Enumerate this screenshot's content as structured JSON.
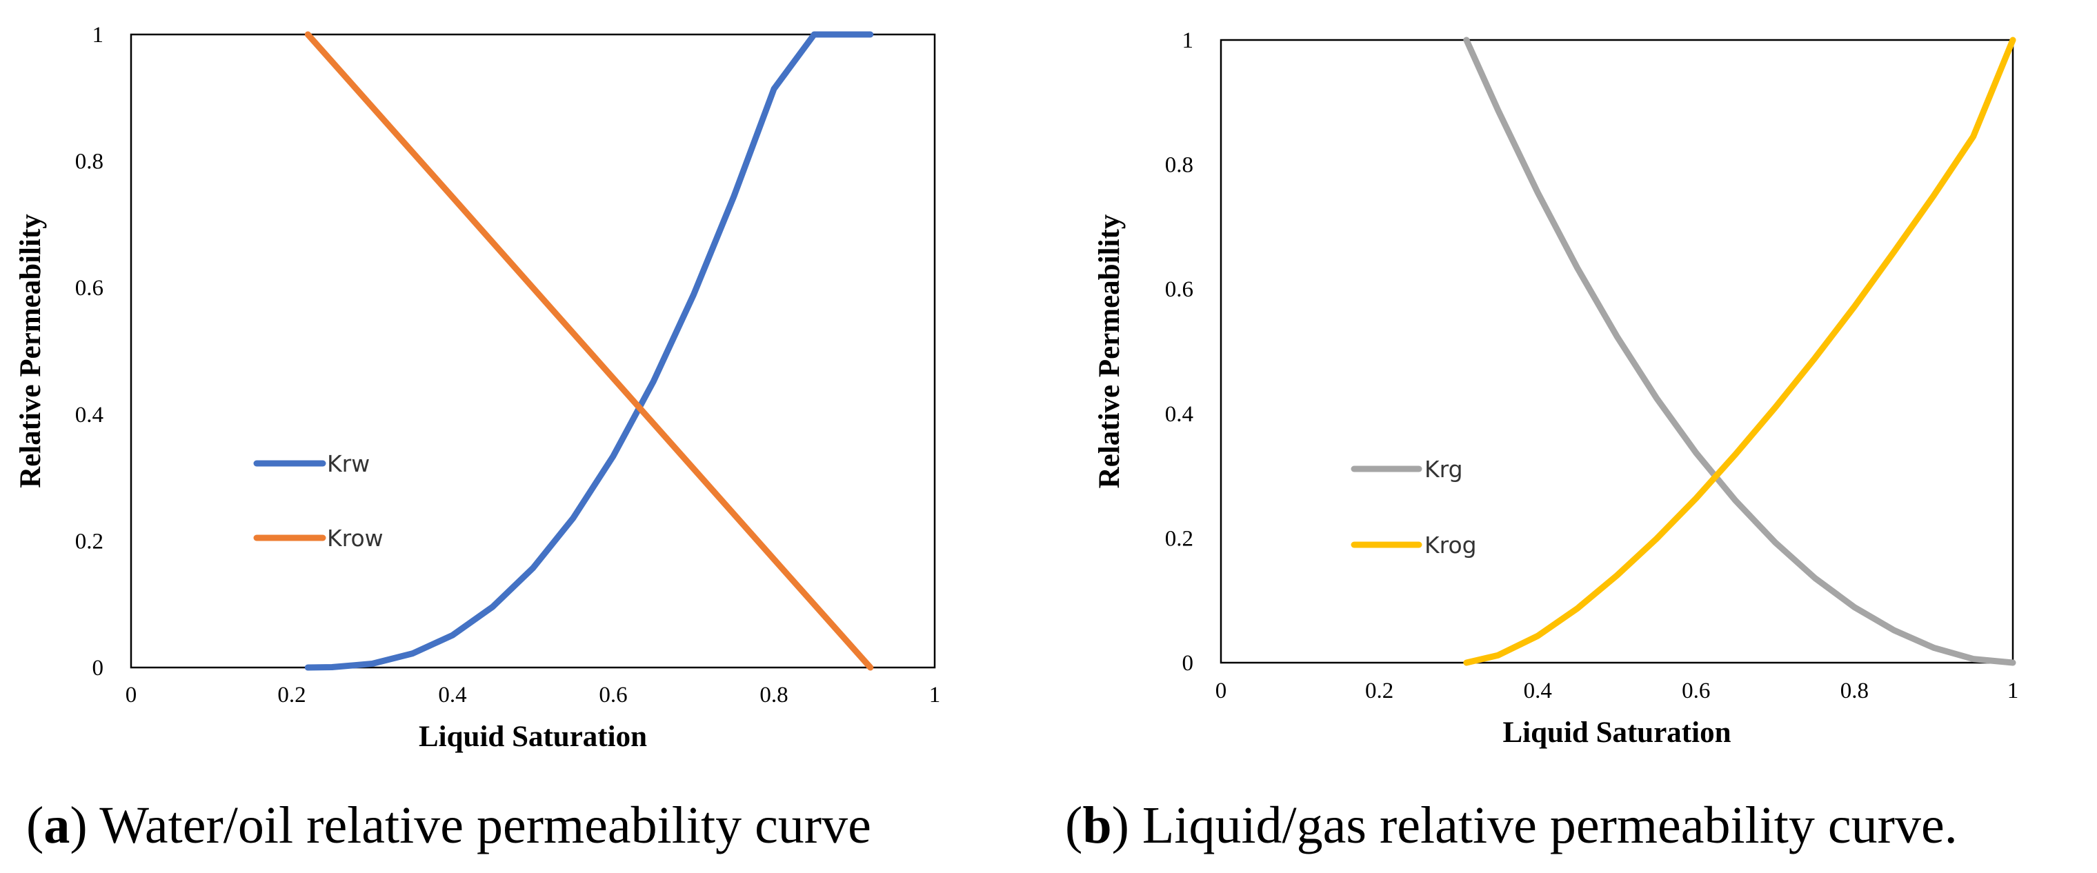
{
  "chart_data": [
    {
      "type": "line",
      "panel": "a",
      "caption": {
        "letter": "a",
        "prefix": "(",
        "suffix": ")",
        "text": " Water/oil relative permeability curve"
      },
      "xlabel": "Liquid Saturation",
      "ylabel": "Relative Permeability",
      "xlim": [
        0,
        1
      ],
      "ylim": [
        0,
        1
      ],
      "xticks": [
        "0",
        "0.2",
        "0.4",
        "0.6",
        "0.8",
        "1"
      ],
      "yticks": [
        "0",
        "0.2",
        "0.4",
        "0.6",
        "0.8",
        "1"
      ],
      "legend_placement": "middle-left",
      "series": [
        {
          "name": "Krw",
          "color": "#4472C4",
          "x": [
            0.22,
            0.25,
            0.3,
            0.35,
            0.4,
            0.45,
            0.5,
            0.55,
            0.6,
            0.65,
            0.7,
            0.75,
            0.8,
            0.85,
            0.9,
            0.92
          ],
          "y": [
            0.0,
            0.0005,
            0.006,
            0.022,
            0.051,
            0.096,
            0.157,
            0.236,
            0.334,
            0.452,
            0.589,
            0.744,
            0.914,
            1.0,
            1.0,
            1.0
          ]
        },
        {
          "name": "Krow",
          "color": "#ED7D31",
          "x": [
            0.22,
            0.4,
            0.6,
            0.8,
            0.92
          ],
          "y": [
            1.0,
            0.743,
            0.457,
            0.171,
            0.0
          ]
        }
      ]
    },
    {
      "type": "line",
      "panel": "b",
      "caption": {
        "letter": "b",
        "prefix": "(",
        "suffix": ")",
        "text": " Liquid/gas relative permeability curve."
      },
      "xlabel": "Liquid Saturation",
      "ylabel": "Relative Permeability",
      "xlim": [
        0,
        1
      ],
      "ylim": [
        0,
        1
      ],
      "xticks": [
        "0",
        "0.2",
        "0.4",
        "0.6",
        "0.8",
        "1"
      ],
      "yticks": [
        "0",
        "0.2",
        "0.4",
        "0.6",
        "0.8",
        "1"
      ],
      "legend_placement": "middle-left",
      "series": [
        {
          "name": "Krg",
          "color": "#A5A5A5",
          "x": [
            0.31,
            0.35,
            0.4,
            0.45,
            0.5,
            0.55,
            0.6,
            0.65,
            0.7,
            0.75,
            0.8,
            0.85,
            0.9,
            0.95,
            1.0
          ],
          "y": [
            1.0,
            0.887,
            0.755,
            0.634,
            0.524,
            0.425,
            0.337,
            0.26,
            0.193,
            0.136,
            0.089,
            0.052,
            0.024,
            0.006,
            0.0
          ]
        },
        {
          "name": "Krog",
          "color": "#FFC000",
          "x": [
            0.31,
            0.35,
            0.4,
            0.45,
            0.5,
            0.55,
            0.6,
            0.65,
            0.7,
            0.75,
            0.8,
            0.85,
            0.9,
            0.95,
            1.0
          ],
          "y": [
            0.0,
            0.012,
            0.043,
            0.087,
            0.14,
            0.199,
            0.264,
            0.335,
            0.41,
            0.489,
            0.572,
            0.66,
            0.75,
            0.845,
            1.0
          ]
        }
      ]
    }
  ]
}
